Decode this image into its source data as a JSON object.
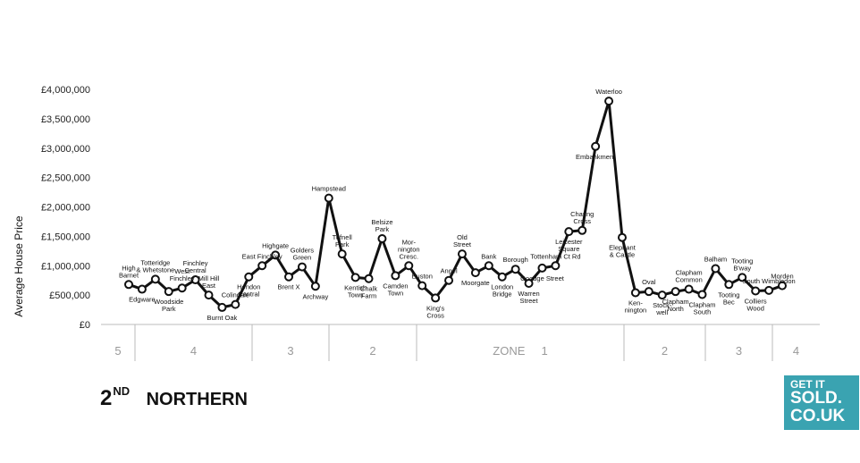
{
  "chart_data": {
    "type": "line",
    "ylabel": "Average House Price",
    "ylim": [
      0,
      4000000
    ],
    "yticks": [
      "£0",
      "£500,000",
      "£1,000,000",
      "£1,500,000",
      "£2,000,000",
      "£2,500,000",
      "£3,000,000",
      "£3,500,000",
      "£4,000,000"
    ],
    "grid": false,
    "stations": [
      {
        "label": [
          "High",
          "Barnet"
        ],
        "value": 680000
      },
      {
        "label": [
          "Edgware"
        ],
        "value": 600000
      },
      {
        "label": [
          "Totteridge",
          "& Whetstone"
        ],
        "value": 770000
      },
      {
        "label": [
          "Woodside",
          "Park"
        ],
        "value": 560000
      },
      {
        "label": [
          "West",
          "Finchley"
        ],
        "value": 620000
      },
      {
        "label": [
          "Finchley",
          "Central"
        ],
        "value": 760000
      },
      {
        "label": [
          "Mill Hill",
          "East"
        ],
        "value": 500000
      },
      {
        "label": [
          "Burnt Oak"
        ],
        "value": 290000
      },
      {
        "label": [
          "Colindale"
        ],
        "value": 340000
      },
      {
        "label": [
          "Hendon",
          "Central"
        ],
        "value": 810000
      },
      {
        "label": [
          "East Finchley"
        ],
        "value": 1000000
      },
      {
        "label": [
          "Highgate"
        ],
        "value": 1180000
      },
      {
        "label": [
          "Brent X"
        ],
        "value": 810000
      },
      {
        "label": [
          "Golders",
          "Green"
        ],
        "value": 980000
      },
      {
        "label": [
          "Archway"
        ],
        "value": 650000
      },
      {
        "label": [
          "Hampstead"
        ],
        "value": 2150000
      },
      {
        "label": [
          "Tufnell",
          "Park"
        ],
        "value": 1200000
      },
      {
        "label": [
          "Kentish",
          "Town"
        ],
        "value": 800000
      },
      {
        "label": [
          "Chalk",
          "Farm"
        ],
        "value": 780000
      },
      {
        "label": [
          "Belsize",
          "Park"
        ],
        "value": 1460000
      },
      {
        "label": [
          "Camden",
          "Town"
        ],
        "value": 830000
      },
      {
        "label": [
          "Mor-",
          "nington",
          "Cresc."
        ],
        "value": 1000000
      },
      {
        "label": [
          "Euston"
        ],
        "value": 660000
      },
      {
        "label": [
          "King's",
          "Cross"
        ],
        "value": 450000
      },
      {
        "label": [
          "Angel"
        ],
        "value": 750000
      },
      {
        "label": [
          "Old",
          "Street"
        ],
        "value": 1200000
      },
      {
        "label": [
          "Moorgate"
        ],
        "value": 880000
      },
      {
        "label": [
          "Bank"
        ],
        "value": 1000000
      },
      {
        "label": [
          "London",
          "Bridge"
        ],
        "value": 810000
      },
      {
        "label": [
          "Borough"
        ],
        "value": 940000
      },
      {
        "label": [
          "Warren",
          "Street"
        ],
        "value": 700000
      },
      {
        "label": [
          "Goodge Street"
        ],
        "value": 960000
      },
      {
        "label": [
          "Tottenham Ct Rd"
        ],
        "value": 1000000
      },
      {
        "label": [
          "Leicester",
          "Square"
        ],
        "value": 1580000
      },
      {
        "label": [
          "Charing",
          "Cross"
        ],
        "value": 1600000
      },
      {
        "label": [
          "Embankment"
        ],
        "value": 3030000
      },
      {
        "label": [
          "Waterloo"
        ],
        "value": 3800000
      },
      {
        "label": [
          "Elephant",
          "& Castle"
        ],
        "value": 1480000
      },
      {
        "label": [
          "Ken-",
          "nington"
        ],
        "value": 540000
      },
      {
        "label": [
          "Oval"
        ],
        "value": 560000
      },
      {
        "label": [
          "Stock-",
          "well"
        ],
        "value": 500000
      },
      {
        "label": [
          "Clapham",
          "North"
        ],
        "value": 560000
      },
      {
        "label": [
          "Clapham",
          "Common"
        ],
        "value": 600000
      },
      {
        "label": [
          "Clapham",
          "South"
        ],
        "value": 510000
      },
      {
        "label": [
          "Balham"
        ],
        "value": 950000
      },
      {
        "label": [
          "Tooting",
          "Bec"
        ],
        "value": 680000
      },
      {
        "label": [
          "Tooting",
          "B'way"
        ],
        "value": 800000
      },
      {
        "label": [
          "Colliers",
          "Wood"
        ],
        "value": 570000
      },
      {
        "label": [
          "South Wimbledon"
        ],
        "value": 580000
      },
      {
        "label": [
          "Morden"
        ],
        "value": 660000
      }
    ],
    "zones": [
      {
        "label": "5"
      },
      {
        "label": "4"
      },
      {
        "label": "3"
      },
      {
        "label": "2"
      },
      {
        "label": "ZONE     1"
      },
      {
        "label": "2"
      },
      {
        "label": "3"
      },
      {
        "label": "4"
      }
    ]
  },
  "title": {
    "rank": "2",
    "rank_suffix": "ND",
    "line": "NORTHERN"
  },
  "logo": {
    "line1": "GET IT",
    "line2": "SOLD.",
    "line3": "CO.UK",
    "color": "#3aa3b1"
  }
}
